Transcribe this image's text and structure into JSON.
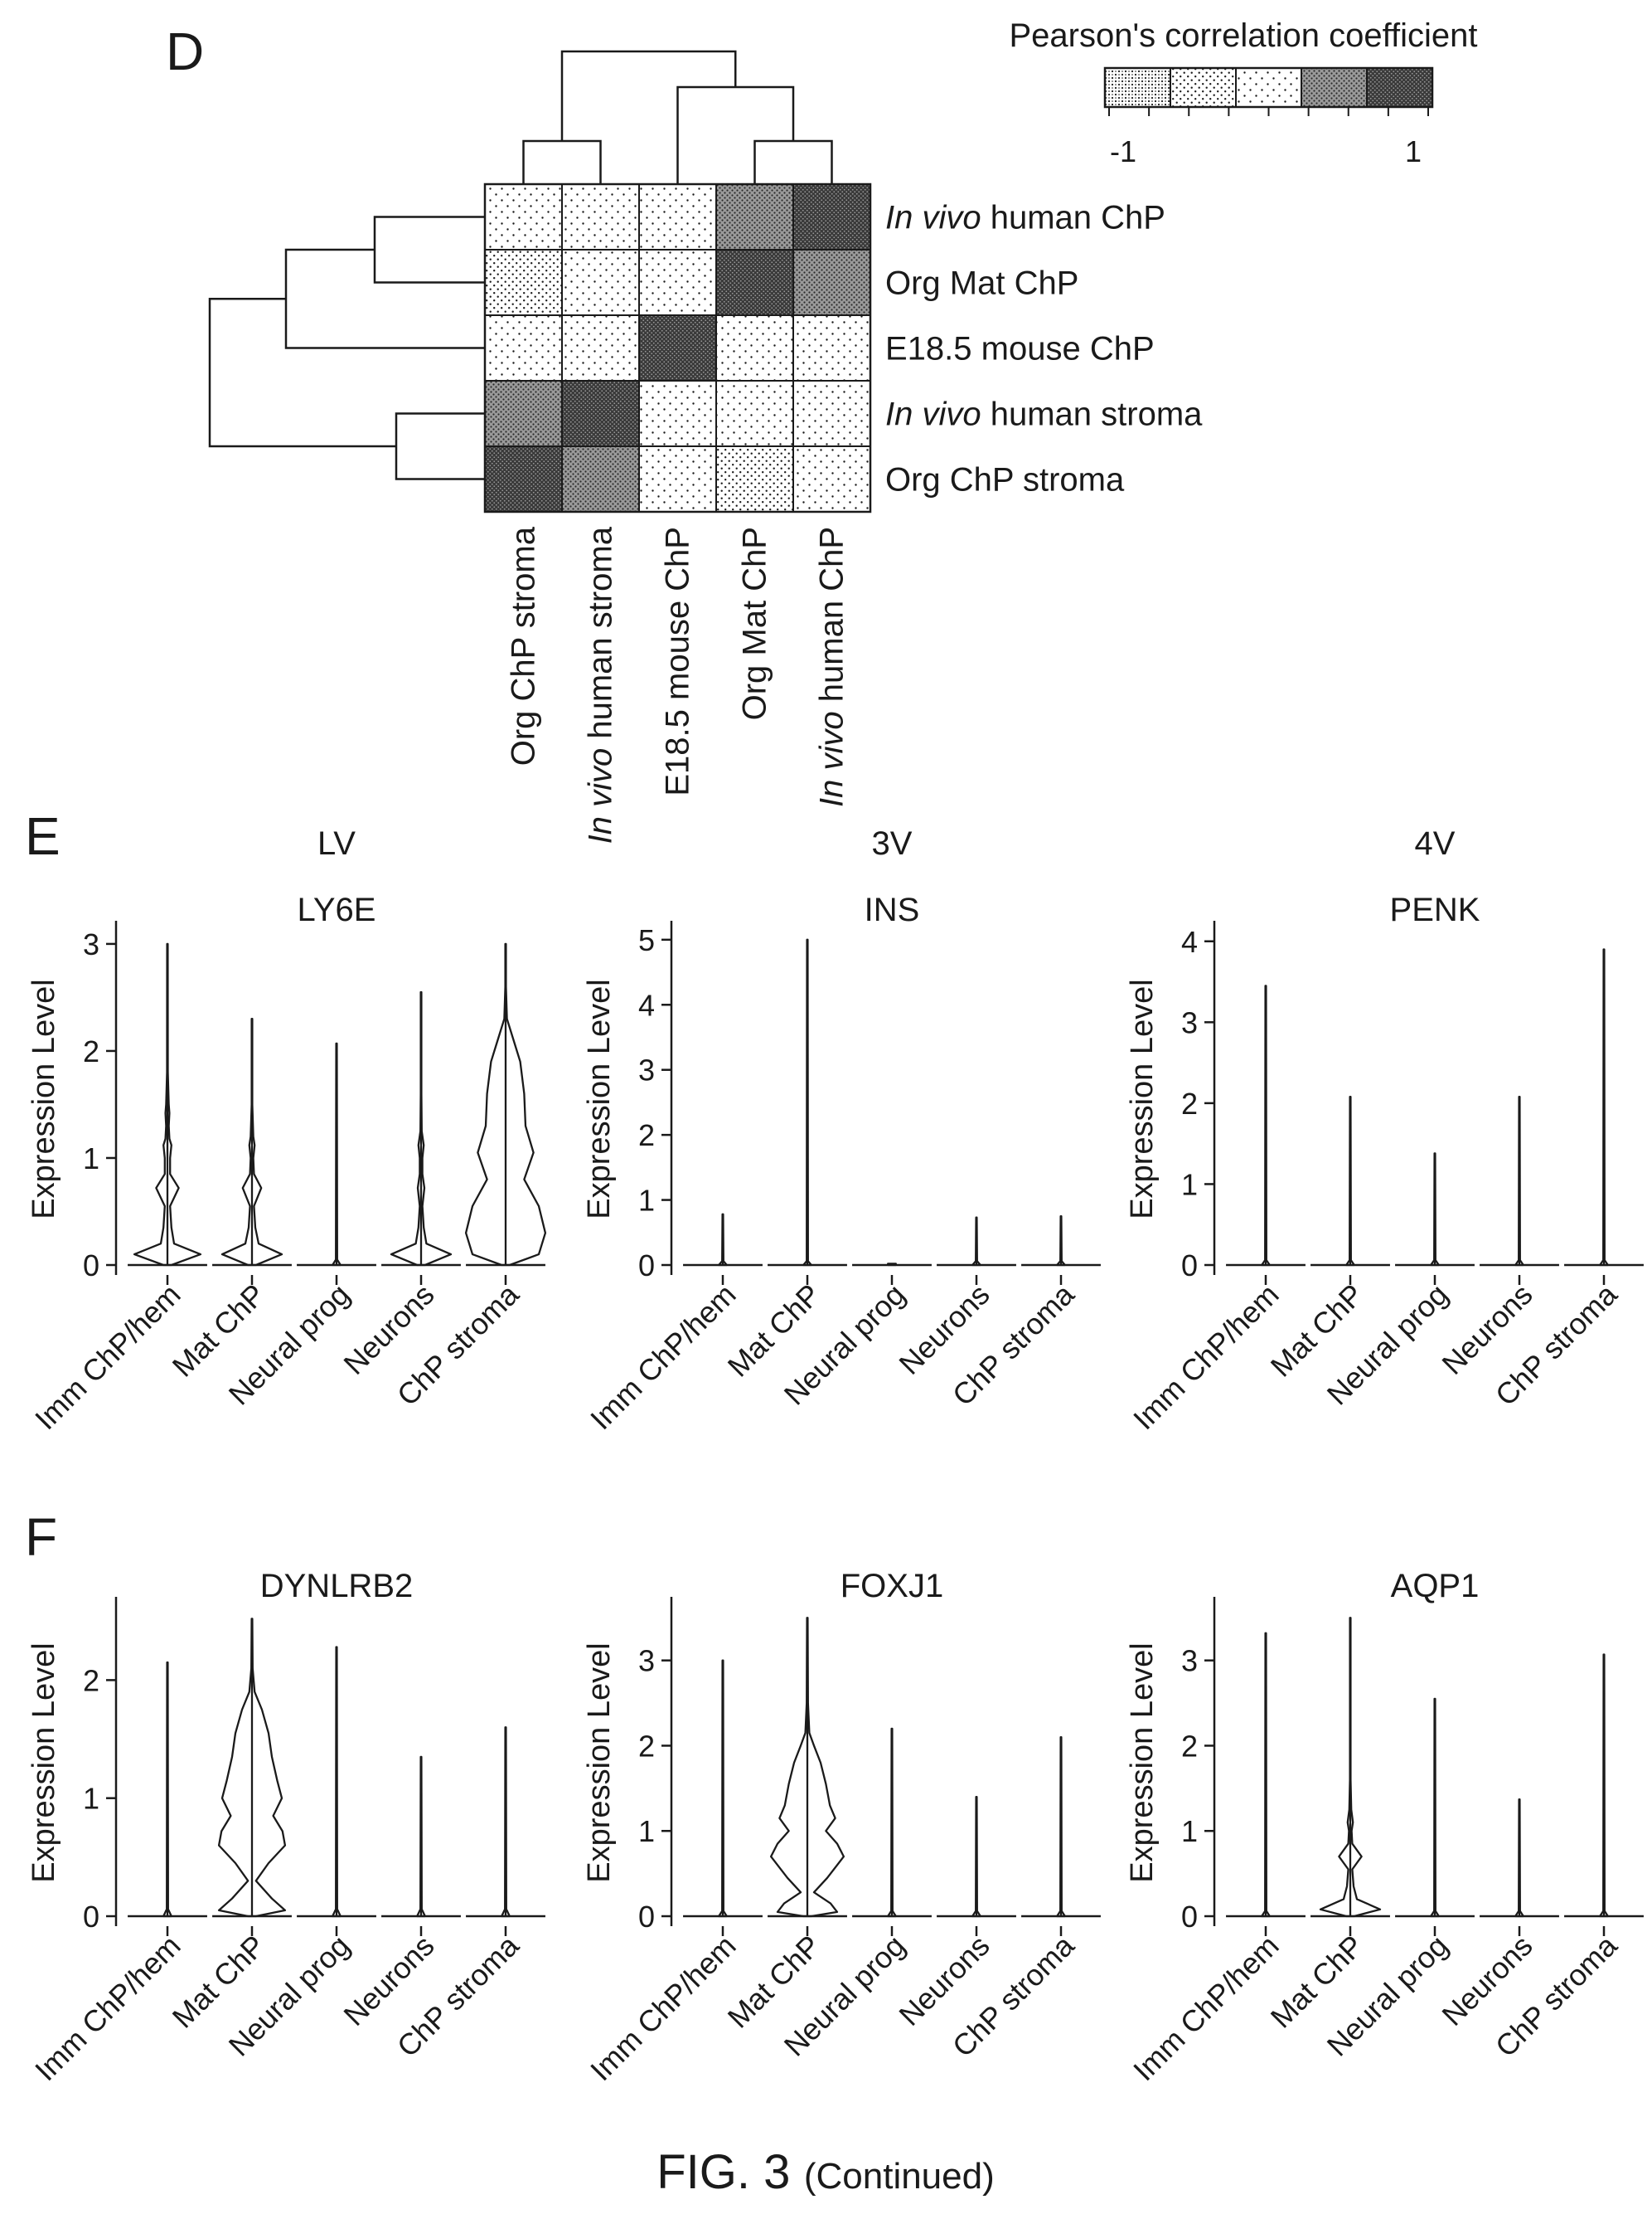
{
  "colors": {
    "ink": "#1a1a1a",
    "background": "#ffffff"
  },
  "caption": {
    "main": "FIG. 3",
    "sub": "(Continued)"
  },
  "panel_labels": {
    "d": "D",
    "e": "E",
    "f": "F"
  },
  "chart_data": [
    {
      "type": "heatmap",
      "panel": "D",
      "legend": {
        "title": "Pearson's correlation coefficient",
        "min_label": "-1",
        "max_label": "1",
        "range": [
          -1,
          1
        ],
        "levels": 5,
        "placement": "top-right"
      },
      "rows": [
        {
          "label_italic": "In vivo",
          "label_rest": " human ChP"
        },
        {
          "label_italic": "",
          "label_rest": "Org Mat ChP"
        },
        {
          "label_italic": "",
          "label_rest": "E18.5 mouse ChP"
        },
        {
          "label_italic": "In vivo",
          "label_rest": " human stroma"
        },
        {
          "label_italic": "",
          "label_rest": "Org ChP stroma"
        }
      ],
      "columns": [
        {
          "label_italic": "",
          "label_rest": "Org ChP stroma"
        },
        {
          "label_italic": "In vivo",
          "label_rest": " human stroma"
        },
        {
          "label_italic": "",
          "label_rest": "E18.5 mouse ChP"
        },
        {
          "label_italic": "",
          "label_rest": "Org Mat ChP"
        },
        {
          "label_italic": "In vivo",
          "label_rest": " human ChP"
        }
      ],
      "levels": [
        [
          2,
          2,
          2,
          3,
          4
        ],
        [
          1,
          2,
          2,
          4,
          3
        ],
        [
          2,
          2,
          4,
          2,
          2
        ],
        [
          3,
          4,
          2,
          2,
          2
        ],
        [
          4,
          3,
          2,
          1,
          2
        ]
      ],
      "row_dendrogram": true,
      "column_dendrogram": true
    },
    {
      "type": "violin",
      "panel": "E",
      "region": "LV",
      "gene": "LY6E",
      "ylabel": "Expression Level",
      "ylim": [
        0,
        3.1
      ],
      "yticks": [
        0,
        1,
        2,
        3
      ],
      "categories": [
        "Imm ChP/hem",
        "Mat ChP",
        "Neural prog",
        "Neurons",
        "ChP stroma"
      ],
      "max_values": [
        3.0,
        2.3,
        2.07,
        2.55,
        3.0
      ],
      "profiles": [
        [
          [
            0,
            0.06
          ],
          [
            0.1,
            0.5
          ],
          [
            0.2,
            0.1
          ],
          [
            0.35,
            0.06
          ],
          [
            0.55,
            0.04
          ],
          [
            0.72,
            0.17
          ],
          [
            0.85,
            0.04
          ],
          [
            1.0,
            0.04
          ],
          [
            1.12,
            0.06
          ],
          [
            1.18,
            0.03
          ],
          [
            1.3,
            0.02
          ],
          [
            1.42,
            0.03
          ],
          [
            1.5,
            0.02
          ],
          [
            1.8,
            0.006
          ],
          [
            3.0,
            0.005
          ]
        ],
        [
          [
            0,
            0.06
          ],
          [
            0.1,
            0.45
          ],
          [
            0.2,
            0.1
          ],
          [
            0.35,
            0.05
          ],
          [
            0.55,
            0.03
          ],
          [
            0.72,
            0.14
          ],
          [
            0.85,
            0.03
          ],
          [
            1.0,
            0.02
          ],
          [
            1.12,
            0.04
          ],
          [
            1.2,
            0.02
          ],
          [
            1.5,
            0.005
          ],
          [
            2.3,
            0.005
          ]
        ],
        [
          [
            0,
            0.06
          ],
          [
            0.05,
            0.01
          ],
          [
            2.07,
            0.005
          ]
        ],
        [
          [
            0,
            0.06
          ],
          [
            0.1,
            0.45
          ],
          [
            0.2,
            0.08
          ],
          [
            0.35,
            0.04
          ],
          [
            0.55,
            0.02
          ],
          [
            0.72,
            0.05
          ],
          [
            0.85,
            0.02
          ],
          [
            1.0,
            0.02
          ],
          [
            1.12,
            0.04
          ],
          [
            1.25,
            0.01
          ],
          [
            1.6,
            0.005
          ],
          [
            2.55,
            0.005
          ]
        ],
        [
          [
            0,
            0.06
          ],
          [
            0.1,
            0.5
          ],
          [
            0.3,
            0.6
          ],
          [
            0.55,
            0.5
          ],
          [
            0.8,
            0.28
          ],
          [
            1.05,
            0.42
          ],
          [
            1.3,
            0.3
          ],
          [
            1.6,
            0.28
          ],
          [
            1.9,
            0.22
          ],
          [
            2.1,
            0.12
          ],
          [
            2.3,
            0.02
          ],
          [
            2.6,
            0.005
          ],
          [
            3.0,
            0.005
          ]
        ]
      ]
    },
    {
      "type": "violin",
      "panel": "E",
      "region": "3V",
      "gene": "INS",
      "ylabel": "Expression Level",
      "ylim": [
        0,
        5.1
      ],
      "yticks": [
        0,
        1,
        2,
        3,
        4,
        5
      ],
      "categories": [
        "Imm ChP/hem",
        "Mat ChP",
        "Neural prog",
        "Neurons",
        "ChP stroma"
      ],
      "max_values": [
        0.78,
        5.0,
        0.02,
        0.73,
        0.75
      ],
      "profiles": [
        [
          [
            0,
            0.06
          ],
          [
            0.06,
            0.01
          ],
          [
            0.78,
            0.005
          ]
        ],
        [
          [
            0,
            0.06
          ],
          [
            0.06,
            0.01
          ],
          [
            5.0,
            0.005
          ]
        ],
        [
          [
            0,
            0.06
          ],
          [
            0.02,
            0.06
          ]
        ],
        [
          [
            0,
            0.06
          ],
          [
            0.06,
            0.01
          ],
          [
            0.73,
            0.005
          ]
        ],
        [
          [
            0,
            0.06
          ],
          [
            0.06,
            0.01
          ],
          [
            0.75,
            0.005
          ]
        ]
      ]
    },
    {
      "type": "violin",
      "panel": "E",
      "region": "4V",
      "gene": "PENK",
      "ylabel": "Expression Level",
      "ylim": [
        0,
        4.1
      ],
      "yticks": [
        0,
        1,
        2,
        3,
        4
      ],
      "categories": [
        "Imm ChP/hem",
        "Mat ChP",
        "Neural prog",
        "Neurons",
        "ChP stroma"
      ],
      "max_values": [
        3.45,
        2.08,
        1.38,
        2.08,
        3.9
      ],
      "profiles": [
        [
          [
            0,
            0.06
          ],
          [
            0.06,
            0.01
          ],
          [
            3.45,
            0.005
          ]
        ],
        [
          [
            0,
            0.06
          ],
          [
            0.06,
            0.01
          ],
          [
            2.08,
            0.005
          ]
        ],
        [
          [
            0,
            0.06
          ],
          [
            0.06,
            0.01
          ],
          [
            1.38,
            0.005
          ]
        ],
        [
          [
            0,
            0.06
          ],
          [
            0.06,
            0.01
          ],
          [
            2.08,
            0.005
          ]
        ],
        [
          [
            0,
            0.06
          ],
          [
            0.06,
            0.01
          ],
          [
            3.9,
            0.005
          ]
        ]
      ]
    },
    {
      "type": "violin",
      "panel": "F",
      "gene": "DYNLRB2",
      "ylabel": "Expression Level",
      "ylim": [
        0,
        2.6
      ],
      "yticks": [
        0,
        1,
        2
      ],
      "categories": [
        "Imm ChP/hem",
        "Mat ChP",
        "Neural prog",
        "Neurons",
        "ChP stroma"
      ],
      "max_values": [
        2.15,
        2.52,
        2.28,
        1.35,
        1.6
      ],
      "profiles": [
        [
          [
            0,
            0.06
          ],
          [
            0.06,
            0.01
          ],
          [
            2.15,
            0.005
          ]
        ],
        [
          [
            0,
            0.06
          ],
          [
            0.05,
            0.5
          ],
          [
            0.15,
            0.3
          ],
          [
            0.3,
            0.06
          ],
          [
            0.45,
            0.25
          ],
          [
            0.6,
            0.5
          ],
          [
            0.72,
            0.46
          ],
          [
            0.85,
            0.32
          ],
          [
            1.0,
            0.45
          ],
          [
            1.15,
            0.38
          ],
          [
            1.35,
            0.3
          ],
          [
            1.55,
            0.25
          ],
          [
            1.75,
            0.15
          ],
          [
            1.9,
            0.04
          ],
          [
            2.1,
            0.01
          ],
          [
            2.52,
            0.005
          ]
        ],
        [
          [
            0,
            0.06
          ],
          [
            0.06,
            0.01
          ],
          [
            2.28,
            0.005
          ]
        ],
        [
          [
            0,
            0.06
          ],
          [
            0.06,
            0.01
          ],
          [
            1.35,
            0.005
          ]
        ],
        [
          [
            0,
            0.06
          ],
          [
            0.06,
            0.01
          ],
          [
            1.6,
            0.005
          ]
        ]
      ]
    },
    {
      "type": "violin",
      "panel": "F",
      "gene": "FOXJ1",
      "ylabel": "Expression Level",
      "ylim": [
        0,
        3.6
      ],
      "yticks": [
        0,
        1,
        2,
        3
      ],
      "categories": [
        "Imm ChP/hem",
        "Mat ChP",
        "Neural prog",
        "Neurons",
        "ChP stroma"
      ],
      "max_values": [
        3.0,
        3.5,
        2.2,
        1.4,
        2.1
      ],
      "profiles": [
        [
          [
            0,
            0.06
          ],
          [
            0.06,
            0.01
          ],
          [
            3.0,
            0.005
          ]
        ],
        [
          [
            0,
            0.06
          ],
          [
            0.05,
            0.45
          ],
          [
            0.15,
            0.35
          ],
          [
            0.28,
            0.1
          ],
          [
            0.45,
            0.3
          ],
          [
            0.7,
            0.55
          ],
          [
            0.85,
            0.45
          ],
          [
            1.0,
            0.28
          ],
          [
            1.15,
            0.42
          ],
          [
            1.3,
            0.34
          ],
          [
            1.55,
            0.28
          ],
          [
            1.8,
            0.2
          ],
          [
            2.0,
            0.1
          ],
          [
            2.15,
            0.03
          ],
          [
            2.5,
            0.01
          ],
          [
            3.5,
            0.005
          ]
        ],
        [
          [
            0,
            0.06
          ],
          [
            0.06,
            0.01
          ],
          [
            2.2,
            0.005
          ]
        ],
        [
          [
            0,
            0.06
          ],
          [
            0.06,
            0.01
          ],
          [
            1.4,
            0.005
          ]
        ],
        [
          [
            0,
            0.06
          ],
          [
            0.06,
            0.01
          ],
          [
            2.1,
            0.005
          ]
        ]
      ]
    },
    {
      "type": "violin",
      "panel": "F",
      "gene": "AQP1",
      "ylabel": "Expression Level",
      "ylim": [
        0,
        3.6
      ],
      "yticks": [
        0,
        1,
        2,
        3
      ],
      "categories": [
        "Imm ChP/hem",
        "Mat ChP",
        "Neural prog",
        "Neurons",
        "ChP stroma"
      ],
      "max_values": [
        3.32,
        3.5,
        2.55,
        1.37,
        3.07
      ],
      "profiles": [
        [
          [
            0,
            0.06
          ],
          [
            0.06,
            0.01
          ],
          [
            3.32,
            0.005
          ]
        ],
        [
          [
            0,
            0.06
          ],
          [
            0.08,
            0.45
          ],
          [
            0.2,
            0.1
          ],
          [
            0.35,
            0.05
          ],
          [
            0.55,
            0.03
          ],
          [
            0.7,
            0.17
          ],
          [
            0.85,
            0.03
          ],
          [
            1.0,
            0.02
          ],
          [
            1.1,
            0.04
          ],
          [
            1.25,
            0.015
          ],
          [
            1.6,
            0.005
          ],
          [
            3.5,
            0.005
          ]
        ],
        [
          [
            0,
            0.06
          ],
          [
            0.06,
            0.01
          ],
          [
            2.55,
            0.005
          ]
        ],
        [
          [
            0,
            0.06
          ],
          [
            0.06,
            0.01
          ],
          [
            1.37,
            0.005
          ]
        ],
        [
          [
            0,
            0.06
          ],
          [
            0.06,
            0.01
          ],
          [
            3.07,
            0.005
          ]
        ]
      ]
    }
  ]
}
